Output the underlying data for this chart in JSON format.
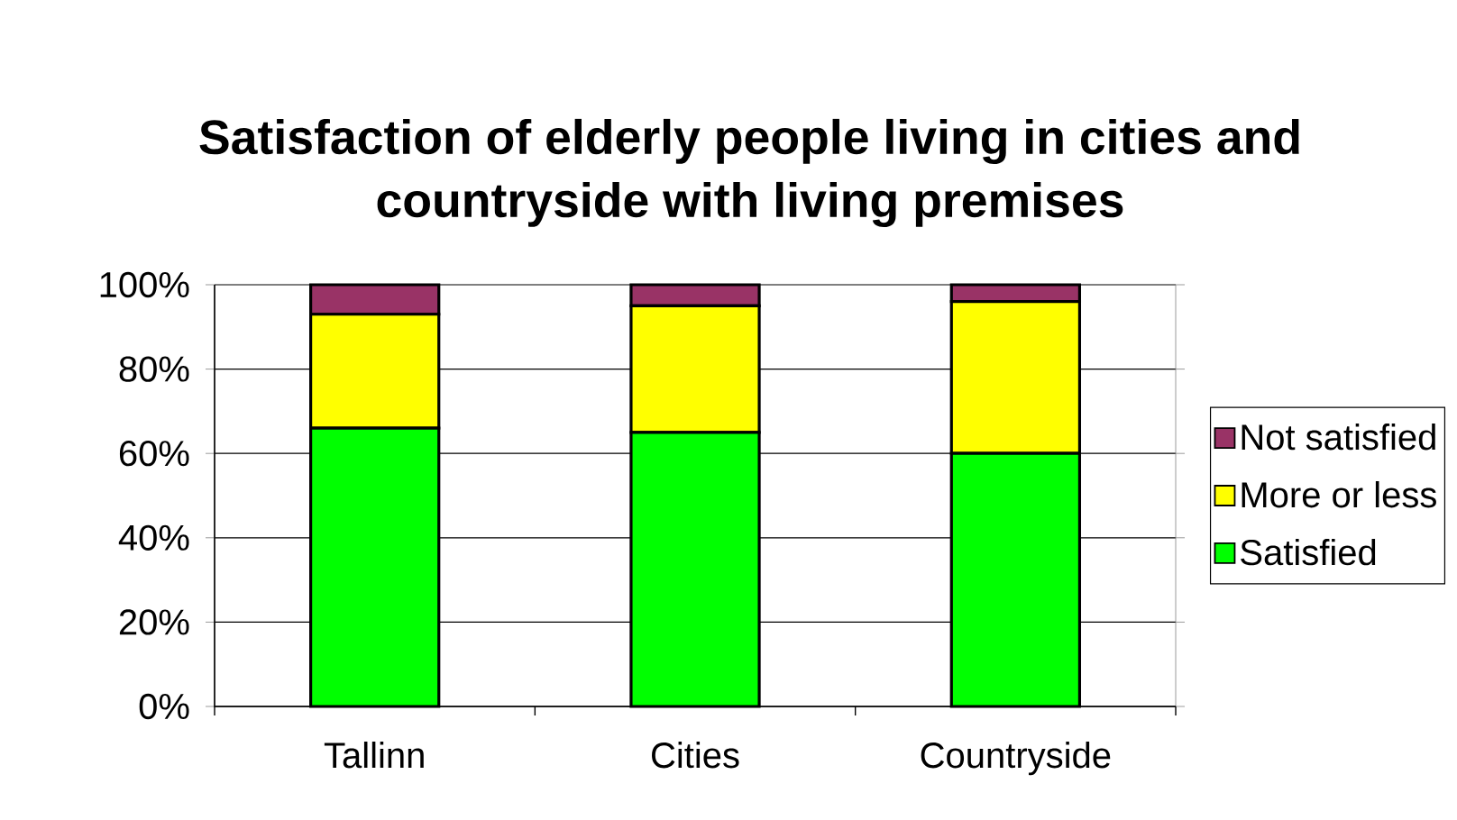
{
  "chart_data": {
    "type": "bar",
    "title": "Satisfaction of elderly people living in cities and countryside with living premises",
    "categories": [
      "Tallinn",
      "Cities",
      "Countryside"
    ],
    "stacked": true,
    "series": [
      {
        "name": "Satisfied",
        "color": "#00ff00",
        "values": [
          66,
          65,
          60
        ]
      },
      {
        "name": "More or less",
        "color": "#ffff00",
        "values": [
          27,
          30,
          36
        ]
      },
      {
        "name": "Not satisfied",
        "color": "#993366",
        "values": [
          7,
          5,
          4
        ]
      }
    ],
    "ylim": [
      0,
      100
    ],
    "yticks": [
      {
        "value": 0,
        "label": "0%"
      },
      {
        "value": 20,
        "label": "20%"
      },
      {
        "value": 40,
        "label": "40%"
      },
      {
        "value": 60,
        "label": "60%"
      },
      {
        "value": 80,
        "label": "80%"
      },
      {
        "value": 100,
        "label": "100%"
      }
    ],
    "grid": "y",
    "legend": "right"
  }
}
